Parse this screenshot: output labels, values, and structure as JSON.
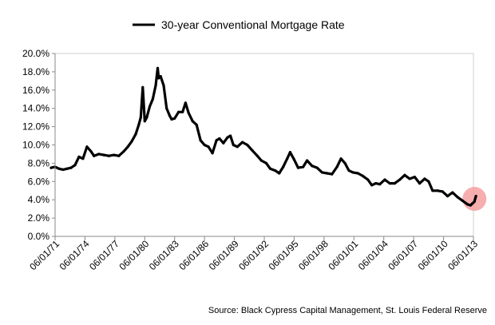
{
  "chart_data": {
    "type": "line",
    "legend_position": "top",
    "grid": false,
    "ylim": [
      0,
      20
    ],
    "y_ticks": [
      "0.0%",
      "2.0%",
      "4.0%",
      "6.0%",
      "8.0%",
      "10.0%",
      "12.0%",
      "14.0%",
      "16.0%",
      "18.0%",
      "20.0%"
    ],
    "x_ticks": [
      "06/01/71",
      "06/01/74",
      "06/01/77",
      "06/01/80",
      "06/01/83",
      "06/01/86",
      "06/01/89",
      "06/01/92",
      "06/01/95",
      "06/01/98",
      "06/01/01",
      "06/01/04",
      "06/01/07",
      "06/01/10",
      "06/01/13"
    ],
    "series": [
      {
        "name": "30-year Conventional Mortgage Rate",
        "color": "#000000",
        "x": [
          1971.0,
          1971.4,
          1971.8,
          1972.2,
          1972.6,
          1973.0,
          1973.4,
          1973.8,
          1974.2,
          1974.6,
          1975.0,
          1975.3,
          1975.8,
          1976.3,
          1976.8,
          1977.3,
          1977.8,
          1978.3,
          1978.7,
          1979.1,
          1979.5,
          1979.8,
          1980.0,
          1980.2,
          1980.4,
          1980.6,
          1980.9,
          1981.2,
          1981.5,
          1981.7,
          1981.8,
          1982.0,
          1982.3,
          1982.6,
          1982.9,
          1983.1,
          1983.4,
          1983.8,
          1984.2,
          1984.5,
          1984.8,
          1985.2,
          1985.6,
          1986.0,
          1986.4,
          1986.8,
          1987.2,
          1987.6,
          1987.9,
          1988.3,
          1988.7,
          1989.0,
          1989.3,
          1989.7,
          1990.2,
          1990.7,
          1991.2,
          1991.7,
          1992.1,
          1992.6,
          1993.0,
          1993.5,
          1993.9,
          1994.3,
          1994.7,
          1995.0,
          1995.4,
          1995.8,
          1996.3,
          1996.7,
          1997.2,
          1997.7,
          1998.2,
          1998.7,
          1999.2,
          1999.7,
          2000.1,
          2000.5,
          2000.9,
          2001.3,
          2001.8,
          2002.3,
          2002.8,
          2003.2,
          2003.6,
          2004.0,
          2004.5,
          2005.0,
          2005.5,
          2006.0,
          2006.5,
          2007.0,
          2007.5,
          2008.0,
          2008.5,
          2008.9,
          2009.3,
          2009.8,
          2010.3,
          2010.8,
          2011.3,
          2011.8,
          2012.3,
          2012.8,
          2013.1,
          2013.3,
          2013.5,
          2013.65
        ],
        "values": [
          7.5,
          7.6,
          7.4,
          7.3,
          7.4,
          7.5,
          7.8,
          8.7,
          8.5,
          9.8,
          9.3,
          8.8,
          9.0,
          8.9,
          8.8,
          8.9,
          8.8,
          9.3,
          9.8,
          10.4,
          11.2,
          12.2,
          13.0,
          16.3,
          12.6,
          13.0,
          14.2,
          15.0,
          16.5,
          18.4,
          17.3,
          17.5,
          16.5,
          14.0,
          13.2,
          12.8,
          12.9,
          13.6,
          13.6,
          14.6,
          13.5,
          12.6,
          12.2,
          10.5,
          10.0,
          9.8,
          9.1,
          10.5,
          10.7,
          10.2,
          10.8,
          11.0,
          10.0,
          9.8,
          10.3,
          10.0,
          9.4,
          8.8,
          8.3,
          8.0,
          7.4,
          7.2,
          6.9,
          7.6,
          8.5,
          9.2,
          8.4,
          7.5,
          7.6,
          8.3,
          7.7,
          7.5,
          7.0,
          6.9,
          6.8,
          7.6,
          8.5,
          8.0,
          7.2,
          7.0,
          6.9,
          6.6,
          6.2,
          5.6,
          5.8,
          5.7,
          6.2,
          5.8,
          5.8,
          6.2,
          6.7,
          6.3,
          6.5,
          5.8,
          6.3,
          6.0,
          5.0,
          5.0,
          4.9,
          4.4,
          4.8,
          4.3,
          3.9,
          3.5,
          3.4,
          3.6,
          3.8,
          4.4
        ]
      }
    ],
    "annotations": [
      {
        "type": "highlight-circle",
        "x": 2013.5,
        "y": 4.1,
        "color": "#f4a0a0"
      }
    ]
  },
  "source_text": "Source: Black Cypress Capital Management, St. Louis Federal Reserve"
}
